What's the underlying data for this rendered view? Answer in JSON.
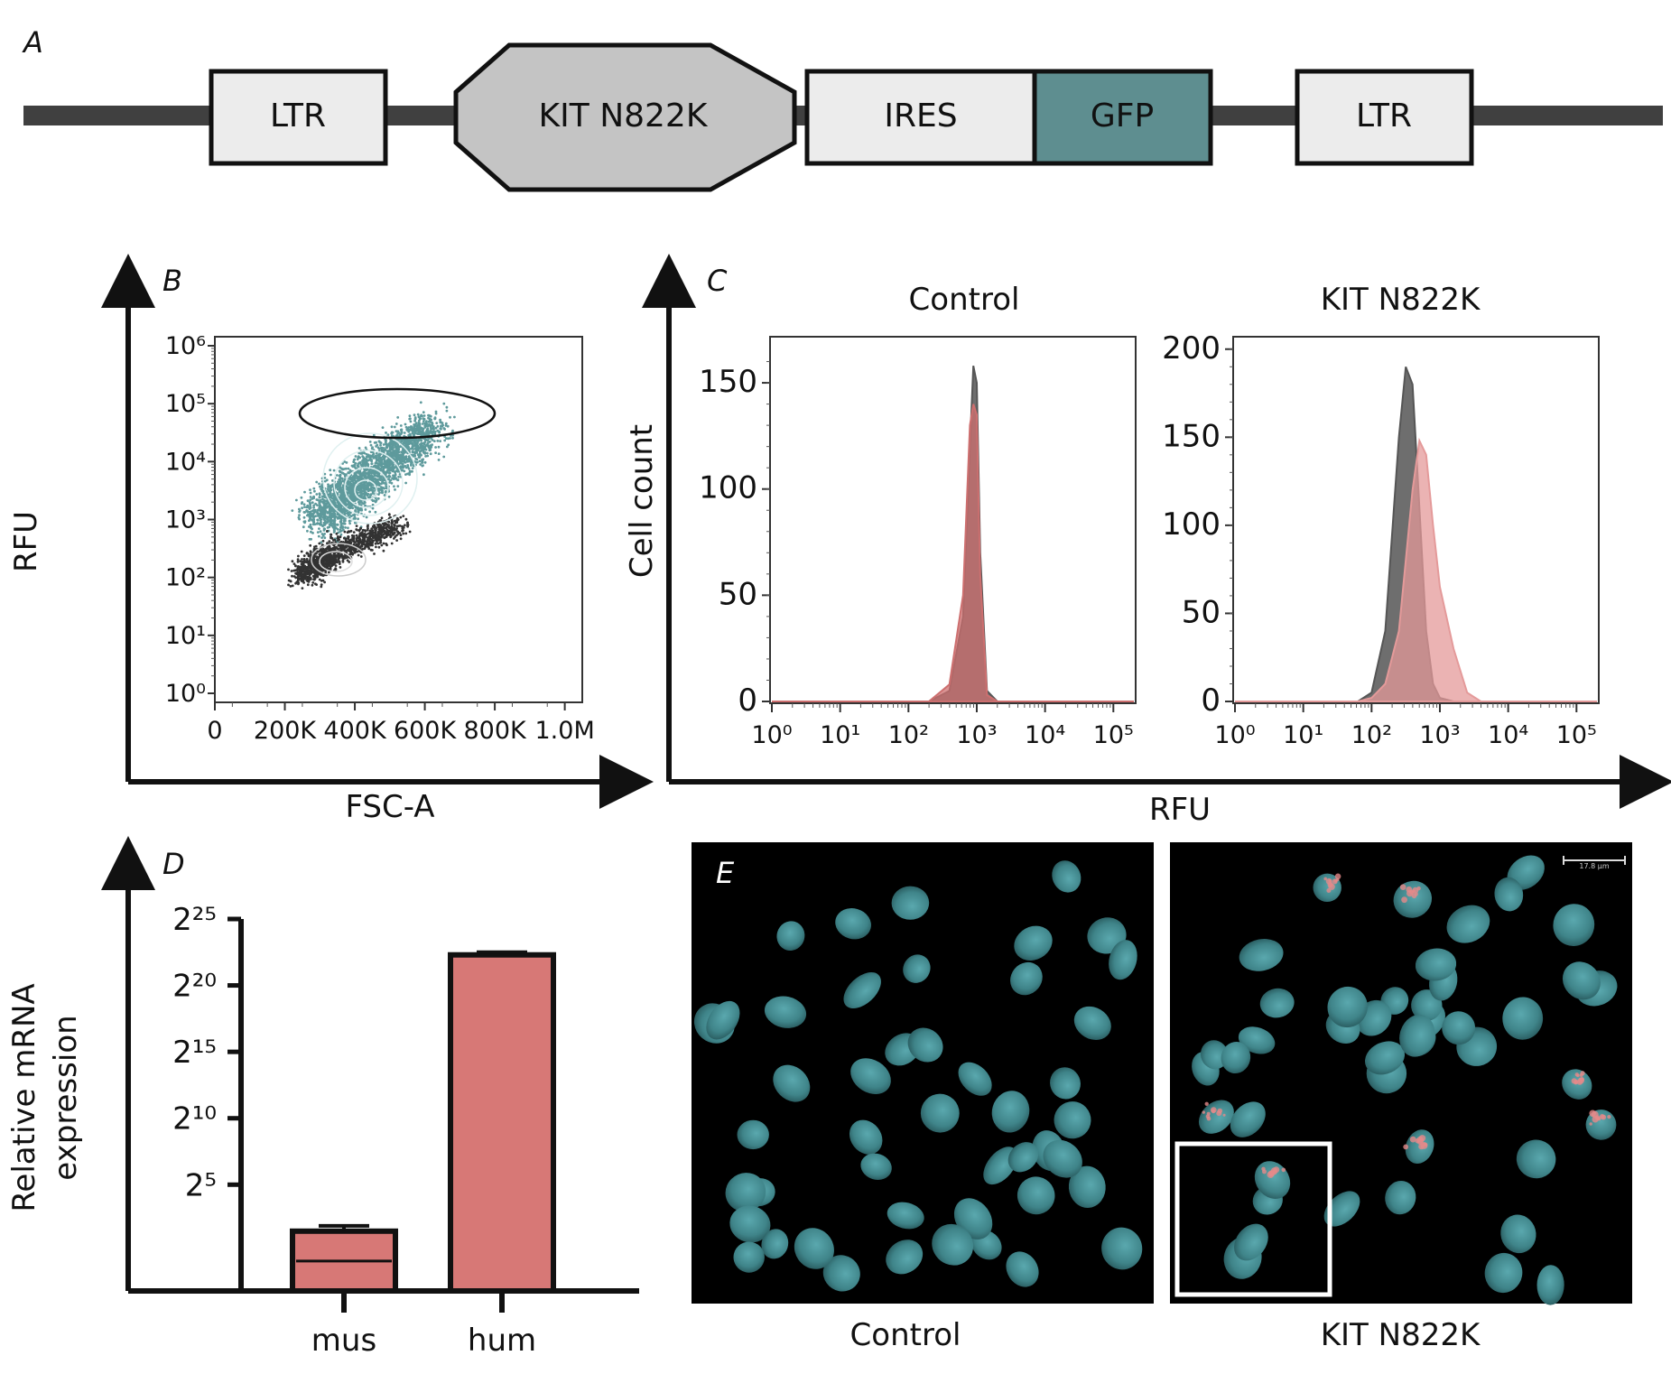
{
  "panelA": {
    "label": "A",
    "segments": [
      "LTR",
      "KIT N822K",
      "IRES",
      "GFP",
      "LTR"
    ],
    "colors": {
      "line": "#404040",
      "box": "#ececec",
      "kit": "#c4c4c4",
      "gfp": "#5e8e90"
    }
  },
  "panelB": {
    "label": "B",
    "xlabel": "FSC-A",
    "ylabel": "RFU",
    "xticks": [
      "0",
      "200K",
      "400K",
      "600K",
      "800K",
      "1.0M"
    ],
    "yticks": [
      "10⁰",
      "10¹",
      "10²",
      "10³",
      "10⁴",
      "10⁵",
      "10⁶"
    ]
  },
  "panelC": {
    "label": "C",
    "ylabel": "Cell count",
    "xlabel": "RFU",
    "xticks": [
      "10⁰",
      "10¹",
      "10²",
      "10³",
      "10⁴",
      "10⁵"
    ],
    "control": {
      "title": "Control",
      "yticks": [
        "0",
        "50",
        "100",
        "150"
      ]
    },
    "kit": {
      "title": "KIT N822K",
      "yticks": [
        "0",
        "50",
        "100",
        "150",
        "200"
      ]
    }
  },
  "panelD": {
    "label": "D",
    "ylabel_line1": "Relative mRNA",
    "ylabel_line2": "expression",
    "yticks": [
      "2⁵",
      "2¹⁰",
      "2¹⁵",
      "2²⁰",
      "2²⁵"
    ]
  },
  "panelE": {
    "label": "E",
    "captions": [
      "Control",
      "KIT N822K"
    ],
    "scalebar_label": "17.8 µm"
  },
  "chart_data": [
    {
      "type": "scatter",
      "panel": "B",
      "xlabel": "FSC-A",
      "ylabel": "RFU",
      "xlim": [
        0,
        1050000
      ],
      "ylim_log10": [
        0,
        6
      ],
      "gate": {
        "cx": 550000,
        "cy_log10": 4.6,
        "note": "ellipse gate"
      },
      "populations": [
        {
          "color": "#5e9a9c",
          "x": [
            300000,
            430000,
            620000
          ],
          "y_log10": [
            3.0,
            3.7,
            4.6
          ]
        },
        {
          "color": "#333333",
          "x": [
            250000,
            330000,
            520000
          ],
          "y_log10": [
            2.0,
            2.4,
            2.9
          ]
        }
      ]
    },
    {
      "type": "area",
      "panel": "C-Control",
      "title": "Control",
      "xlabel": "RFU",
      "ylabel": "Cell count",
      "x_log10": [
        2.3,
        2.6,
        2.8,
        2.9,
        2.95,
        3.0,
        3.05,
        3.15,
        3.3
      ],
      "series": [
        {
          "color": "#555555",
          "values": [
            0,
            5,
            40,
            120,
            158,
            150,
            70,
            5,
            0
          ]
        },
        {
          "color": "#cd6f6f",
          "values": [
            0,
            8,
            50,
            130,
            140,
            135,
            60,
            3,
            0
          ]
        }
      ],
      "ylim": [
        0,
        170
      ],
      "xlim_log10": [
        0,
        5.3
      ]
    },
    {
      "type": "area",
      "panel": "C-KIT N822K",
      "title": "KIT N822K",
      "xlabel": "RFU",
      "ylabel": "Cell count",
      "x_log10": [
        1.8,
        2.0,
        2.2,
        2.4,
        2.5,
        2.6,
        2.7,
        2.8,
        2.9,
        3.0,
        3.2,
        3.4,
        3.6
      ],
      "series": [
        {
          "color": "#555555",
          "values": [
            0,
            5,
            40,
            150,
            190,
            180,
            110,
            40,
            10,
            2,
            0,
            0,
            0
          ]
        },
        {
          "color": "#e49a9a",
          "values": [
            0,
            2,
            10,
            40,
            80,
            120,
            148,
            140,
            100,
            65,
            30,
            5,
            0
          ]
        }
      ],
      "ylim": [
        0,
        205
      ],
      "xlim_log10": [
        0,
        5.3
      ]
    },
    {
      "type": "bar",
      "panel": "D",
      "ylabel": "Relative mRNA expression",
      "categories": [
        "mus",
        "hum"
      ],
      "values_log2": [
        1.5,
        22.3
      ],
      "errors_log2": [
        0.4,
        0.2
      ],
      "ylim_log2": [
        -3,
        25
      ],
      "color": "#d77876"
    }
  ]
}
